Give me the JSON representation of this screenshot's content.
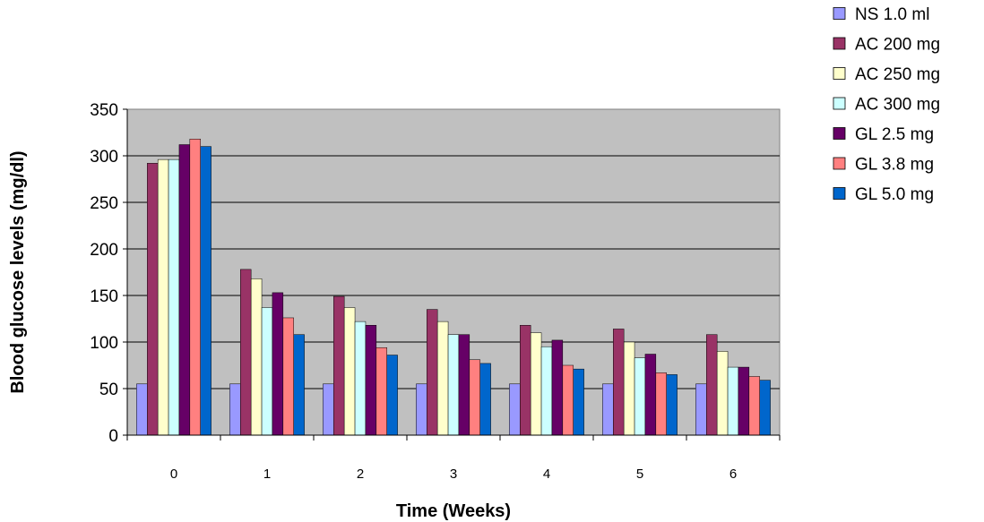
{
  "chart_data": {
    "type": "bar",
    "xlabel": "Time (Weeks)",
    "ylabel": "Blood glucose levels (mg/dl)",
    "ylim": [
      0,
      350
    ],
    "yticks": [
      0,
      50,
      100,
      150,
      200,
      250,
      300,
      350
    ],
    "categories": [
      "0",
      "1",
      "2",
      "3",
      "4",
      "5",
      "6"
    ],
    "grid": true,
    "legend": "right",
    "plot_background": "#c0c0c0",
    "series": [
      {
        "name": "NS 1.0 ml",
        "color": "#9999ff",
        "values": [
          55,
          55,
          55,
          55,
          55,
          55,
          55
        ]
      },
      {
        "name": "AC 200 mg",
        "color": "#993366",
        "values": [
          292,
          178,
          149,
          135,
          118,
          114,
          108
        ]
      },
      {
        "name": "AC 250 mg",
        "color": "#ffffcc",
        "values": [
          296,
          168,
          137,
          122,
          110,
          100,
          90
        ]
      },
      {
        "name": "AC 300 mg",
        "color": "#ccffff",
        "values": [
          296,
          137,
          122,
          108,
          95,
          83,
          73
        ]
      },
      {
        "name": "GL 2.5 mg",
        "color": "#660066",
        "values": [
          312,
          153,
          118,
          108,
          102,
          87,
          73
        ]
      },
      {
        "name": "GL 3.8 mg",
        "color": "#ff8080",
        "values": [
          318,
          126,
          94,
          81,
          75,
          67,
          63
        ]
      },
      {
        "name": "GL 5.0 mg",
        "color": "#0066cc",
        "values": [
          310,
          108,
          86,
          77,
          71,
          65,
          59
        ]
      }
    ]
  }
}
